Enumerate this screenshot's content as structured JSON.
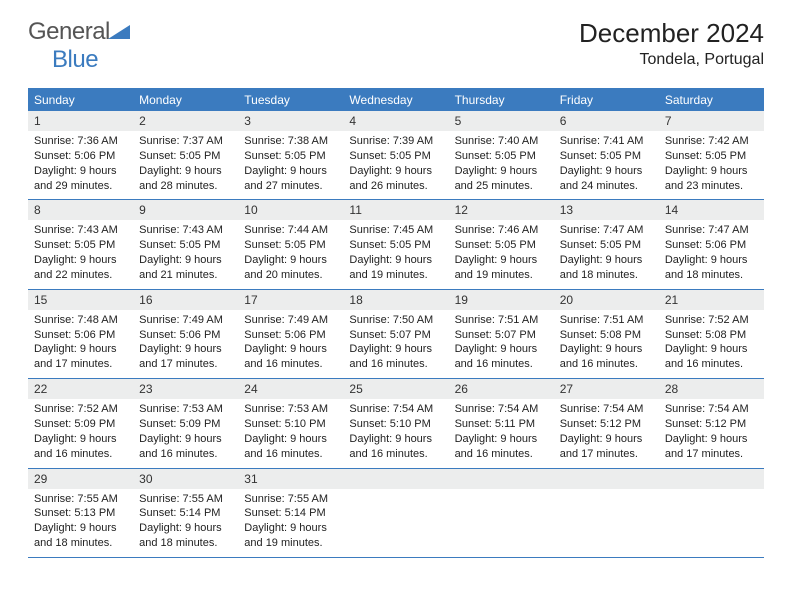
{
  "brand": {
    "word1": "General",
    "word2": "Blue",
    "colors": {
      "gray": "#555555",
      "blue": "#3b7bbf"
    }
  },
  "title": {
    "month": "December 2024",
    "location": "Tondela, Portugal"
  },
  "theme": {
    "header_bg": "#3b7bbf",
    "header_fg": "#ffffff",
    "daynum_bg": "#eceded",
    "border": "#3b7bbf",
    "text": "#222222",
    "weekday_fontsize": 12,
    "daynum_fontsize": 12,
    "body_fontsize": 11
  },
  "weekdays": [
    "Sunday",
    "Monday",
    "Tuesday",
    "Wednesday",
    "Thursday",
    "Friday",
    "Saturday"
  ],
  "weeks": [
    [
      {
        "n": "1",
        "sunrise": "7:36 AM",
        "sunset": "5:06 PM",
        "dl": "9 hours and 29 minutes."
      },
      {
        "n": "2",
        "sunrise": "7:37 AM",
        "sunset": "5:05 PM",
        "dl": "9 hours and 28 minutes."
      },
      {
        "n": "3",
        "sunrise": "7:38 AM",
        "sunset": "5:05 PM",
        "dl": "9 hours and 27 minutes."
      },
      {
        "n": "4",
        "sunrise": "7:39 AM",
        "sunset": "5:05 PM",
        "dl": "9 hours and 26 minutes."
      },
      {
        "n": "5",
        "sunrise": "7:40 AM",
        "sunset": "5:05 PM",
        "dl": "9 hours and 25 minutes."
      },
      {
        "n": "6",
        "sunrise": "7:41 AM",
        "sunset": "5:05 PM",
        "dl": "9 hours and 24 minutes."
      },
      {
        "n": "7",
        "sunrise": "7:42 AM",
        "sunset": "5:05 PM",
        "dl": "9 hours and 23 minutes."
      }
    ],
    [
      {
        "n": "8",
        "sunrise": "7:43 AM",
        "sunset": "5:05 PM",
        "dl": "9 hours and 22 minutes."
      },
      {
        "n": "9",
        "sunrise": "7:43 AM",
        "sunset": "5:05 PM",
        "dl": "9 hours and 21 minutes."
      },
      {
        "n": "10",
        "sunrise": "7:44 AM",
        "sunset": "5:05 PM",
        "dl": "9 hours and 20 minutes."
      },
      {
        "n": "11",
        "sunrise": "7:45 AM",
        "sunset": "5:05 PM",
        "dl": "9 hours and 19 minutes."
      },
      {
        "n": "12",
        "sunrise": "7:46 AM",
        "sunset": "5:05 PM",
        "dl": "9 hours and 19 minutes."
      },
      {
        "n": "13",
        "sunrise": "7:47 AM",
        "sunset": "5:05 PM",
        "dl": "9 hours and 18 minutes."
      },
      {
        "n": "14",
        "sunrise": "7:47 AM",
        "sunset": "5:06 PM",
        "dl": "9 hours and 18 minutes."
      }
    ],
    [
      {
        "n": "15",
        "sunrise": "7:48 AM",
        "sunset": "5:06 PM",
        "dl": "9 hours and 17 minutes."
      },
      {
        "n": "16",
        "sunrise": "7:49 AM",
        "sunset": "5:06 PM",
        "dl": "9 hours and 17 minutes."
      },
      {
        "n": "17",
        "sunrise": "7:49 AM",
        "sunset": "5:06 PM",
        "dl": "9 hours and 16 minutes."
      },
      {
        "n": "18",
        "sunrise": "7:50 AM",
        "sunset": "5:07 PM",
        "dl": "9 hours and 16 minutes."
      },
      {
        "n": "19",
        "sunrise": "7:51 AM",
        "sunset": "5:07 PM",
        "dl": "9 hours and 16 minutes."
      },
      {
        "n": "20",
        "sunrise": "7:51 AM",
        "sunset": "5:08 PM",
        "dl": "9 hours and 16 minutes."
      },
      {
        "n": "21",
        "sunrise": "7:52 AM",
        "sunset": "5:08 PM",
        "dl": "9 hours and 16 minutes."
      }
    ],
    [
      {
        "n": "22",
        "sunrise": "7:52 AM",
        "sunset": "5:09 PM",
        "dl": "9 hours and 16 minutes."
      },
      {
        "n": "23",
        "sunrise": "7:53 AM",
        "sunset": "5:09 PM",
        "dl": "9 hours and 16 minutes."
      },
      {
        "n": "24",
        "sunrise": "7:53 AM",
        "sunset": "5:10 PM",
        "dl": "9 hours and 16 minutes."
      },
      {
        "n": "25",
        "sunrise": "7:54 AM",
        "sunset": "5:10 PM",
        "dl": "9 hours and 16 minutes."
      },
      {
        "n": "26",
        "sunrise": "7:54 AM",
        "sunset": "5:11 PM",
        "dl": "9 hours and 16 minutes."
      },
      {
        "n": "27",
        "sunrise": "7:54 AM",
        "sunset": "5:12 PM",
        "dl": "9 hours and 17 minutes."
      },
      {
        "n": "28",
        "sunrise": "7:54 AM",
        "sunset": "5:12 PM",
        "dl": "9 hours and 17 minutes."
      }
    ],
    [
      {
        "n": "29",
        "sunrise": "7:55 AM",
        "sunset": "5:13 PM",
        "dl": "9 hours and 18 minutes."
      },
      {
        "n": "30",
        "sunrise": "7:55 AM",
        "sunset": "5:14 PM",
        "dl": "9 hours and 18 minutes."
      },
      {
        "n": "31",
        "sunrise": "7:55 AM",
        "sunset": "5:14 PM",
        "dl": "9 hours and 19 minutes."
      },
      {
        "empty": true
      },
      {
        "empty": true
      },
      {
        "empty": true
      },
      {
        "empty": true
      }
    ]
  ],
  "labels": {
    "sunrise": "Sunrise:",
    "sunset": "Sunset:",
    "daylight": "Daylight:"
  }
}
